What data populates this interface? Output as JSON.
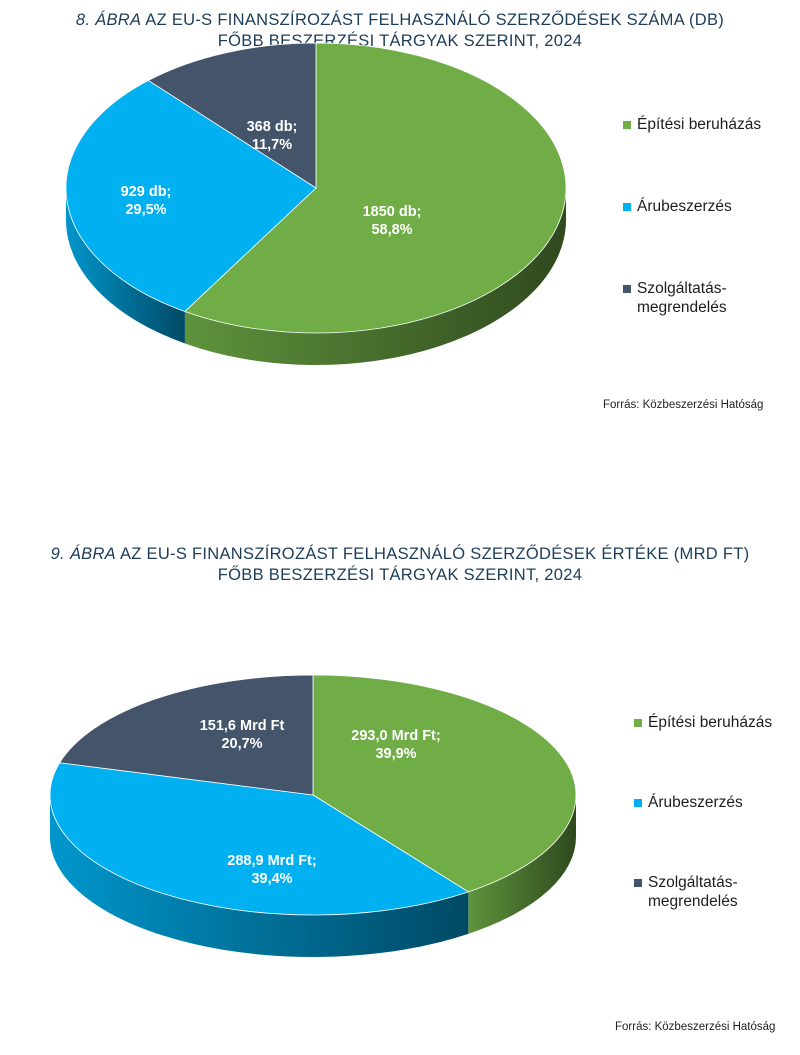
{
  "chart_data": [
    {
      "type": "pie",
      "title_number": "8.",
      "title_word": "ÁBRA",
      "title_rest": "AZ EU-S FINANSZÍROZÁST FELHASZNÁLÓ SZERZŐDÉSEK SZÁMA (DB)",
      "title_line2": "FŐBB BESZERZÉSI TÁRGYAK SZERINT, 2024",
      "categories": [
        "Építési beruházás",
        "Árubeszerzés",
        "Szolgáltatás-megrendelés"
      ],
      "legend_labels": [
        [
          "Építési beruházás"
        ],
        [
          "Árubeszerzés"
        ],
        [
          "Szolgáltatás-",
          "megrendelés"
        ]
      ],
      "values": [
        1850,
        929,
        368
      ],
      "percents": [
        58.8,
        29.5,
        11.7
      ],
      "data_labels": [
        [
          "1850 db;",
          "58,8%"
        ],
        [
          "929 db;",
          "29,5%"
        ],
        [
          "368 db;",
          "11,7%"
        ]
      ],
      "colors": [
        "#70ad47",
        "#00b0f0",
        "#44546a"
      ],
      "legend_position": "right",
      "source": "Forrás: Közbeszerzési Hatóság"
    },
    {
      "type": "pie",
      "title_number": "9.",
      "title_word": "ÁBRA",
      "title_rest": "AZ EU-S FINANSZÍROZÁST FELHASZNÁLÓ SZERZŐDÉSEK ÉRTÉKE (MRD FT)",
      "title_line2": "FŐBB BESZERZÉSI TÁRGYAK SZERINT, 2024",
      "categories": [
        "Építési beruházás",
        "Árubeszerzés",
        "Szolgáltatás-megrendelés"
      ],
      "legend_labels": [
        [
          "Építési beruházás"
        ],
        [
          "Árubeszerzés"
        ],
        [
          "Szolgáltatás-",
          "megrendelés"
        ]
      ],
      "values": [
        293.0,
        288.9,
        151.6
      ],
      "percents": [
        39.9,
        39.4,
        20.7
      ],
      "data_labels": [
        [
          "293,0 Mrd Ft;",
          "39,9%"
        ],
        [
          "288,9 Mrd Ft;",
          "39,4%"
        ],
        [
          "151,6 Mrd Ft",
          "20,7%"
        ]
      ],
      "colors": [
        "#70ad47",
        "#00b0f0",
        "#44546a"
      ],
      "legend_position": "right",
      "source": "Forrás: Közbeszerzési Hatóság"
    }
  ]
}
